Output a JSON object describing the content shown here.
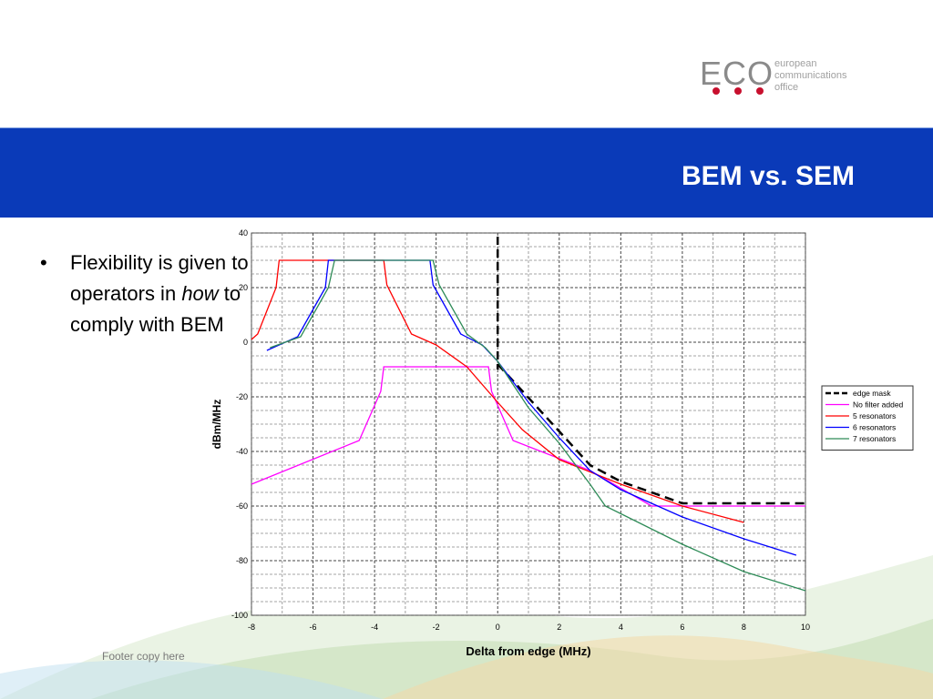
{
  "slide": {
    "title": "BEM vs. SEM",
    "footer": "Footer copy here",
    "header_color": "#0a3ab8"
  },
  "logo": {
    "text": "ECO",
    "lines": [
      "european",
      "communications",
      "office"
    ],
    "dot_color": "#c8102e"
  },
  "bullet": {
    "pre": "Flexibility is given to operators in",
    "emph": "how",
    "post": "to comply with BEM"
  },
  "chart_data": {
    "type": "line",
    "title": "",
    "xlabel": "Delta from edge (MHz)",
    "ylabel": "dBm/MHz",
    "xlim": [
      -8,
      10
    ],
    "ylim": [
      -100,
      40
    ],
    "xticks": [
      -8,
      -6,
      -4,
      -2,
      0,
      2,
      4,
      6,
      8,
      10
    ],
    "yticks": [
      40,
      20,
      0,
      -20,
      -40,
      -60,
      -80,
      -100
    ],
    "grid": true,
    "legend_position": "right",
    "vertical_marker": {
      "x": 0,
      "style": "dashed",
      "color": "#000000"
    },
    "series": [
      {
        "name": "edge mask",
        "color": "#000000",
        "dashed": true,
        "points": [
          [
            0,
            -8
          ],
          [
            3,
            -45
          ],
          [
            4,
            -51
          ],
          [
            6,
            -59
          ],
          [
            10,
            -59
          ]
        ]
      },
      {
        "name": "No filter added",
        "color": "#ff00ff",
        "dashed": false,
        "points": [
          [
            -8,
            -52
          ],
          [
            -4.5,
            -36
          ],
          [
            -3.8,
            -18
          ],
          [
            -3.7,
            -9
          ],
          [
            -0.3,
            -9
          ],
          [
            -0.2,
            -18
          ],
          [
            0.5,
            -36
          ],
          [
            3,
            -47
          ],
          [
            5,
            -60
          ],
          [
            10,
            -60
          ]
        ]
      },
      {
        "name": "5 resonators",
        "color": "#ff0000",
        "dashed": false,
        "points": [
          [
            -8,
            1
          ],
          [
            -7.8,
            3
          ],
          [
            -7.2,
            20
          ],
          [
            -7.1,
            30
          ],
          [
            -3.7,
            30
          ],
          [
            -3.6,
            21
          ],
          [
            -2.8,
            3
          ],
          [
            -2,
            -1
          ],
          [
            -1,
            -9
          ],
          [
            0,
            -22
          ],
          [
            0.8,
            -32
          ],
          [
            2,
            -43
          ],
          [
            4,
            -52
          ],
          [
            6,
            -60
          ],
          [
            8,
            -66
          ]
        ]
      },
      {
        "name": "6 resonators",
        "color": "#0000ff",
        "dashed": false,
        "points": [
          [
            -7.5,
            -3
          ],
          [
            -6.5,
            2
          ],
          [
            -5.6,
            20
          ],
          [
            -5.5,
            30
          ],
          [
            -2.2,
            30
          ],
          [
            -2.1,
            21
          ],
          [
            -1.2,
            3
          ],
          [
            -0.5,
            -1
          ],
          [
            0,
            -7
          ],
          [
            1,
            -22
          ],
          [
            2,
            -35
          ],
          [
            3,
            -47
          ],
          [
            4,
            -54
          ],
          [
            6,
            -64
          ],
          [
            8,
            -72
          ],
          [
            9.7,
            -78
          ]
        ]
      },
      {
        "name": "7 resonators",
        "color": "#2e8b57",
        "dashed": false,
        "points": [
          [
            -7.4,
            -2
          ],
          [
            -6.4,
            2
          ],
          [
            -5.5,
            20
          ],
          [
            -5.3,
            30
          ],
          [
            -2.1,
            30
          ],
          [
            -1.9,
            21
          ],
          [
            -1,
            3
          ],
          [
            -0.4,
            -2
          ],
          [
            0,
            -7
          ],
          [
            1,
            -24
          ],
          [
            2,
            -37
          ],
          [
            3,
            -52
          ],
          [
            3.5,
            -60
          ],
          [
            6,
            -74
          ],
          [
            8,
            -84
          ],
          [
            10,
            -91
          ]
        ]
      }
    ]
  }
}
